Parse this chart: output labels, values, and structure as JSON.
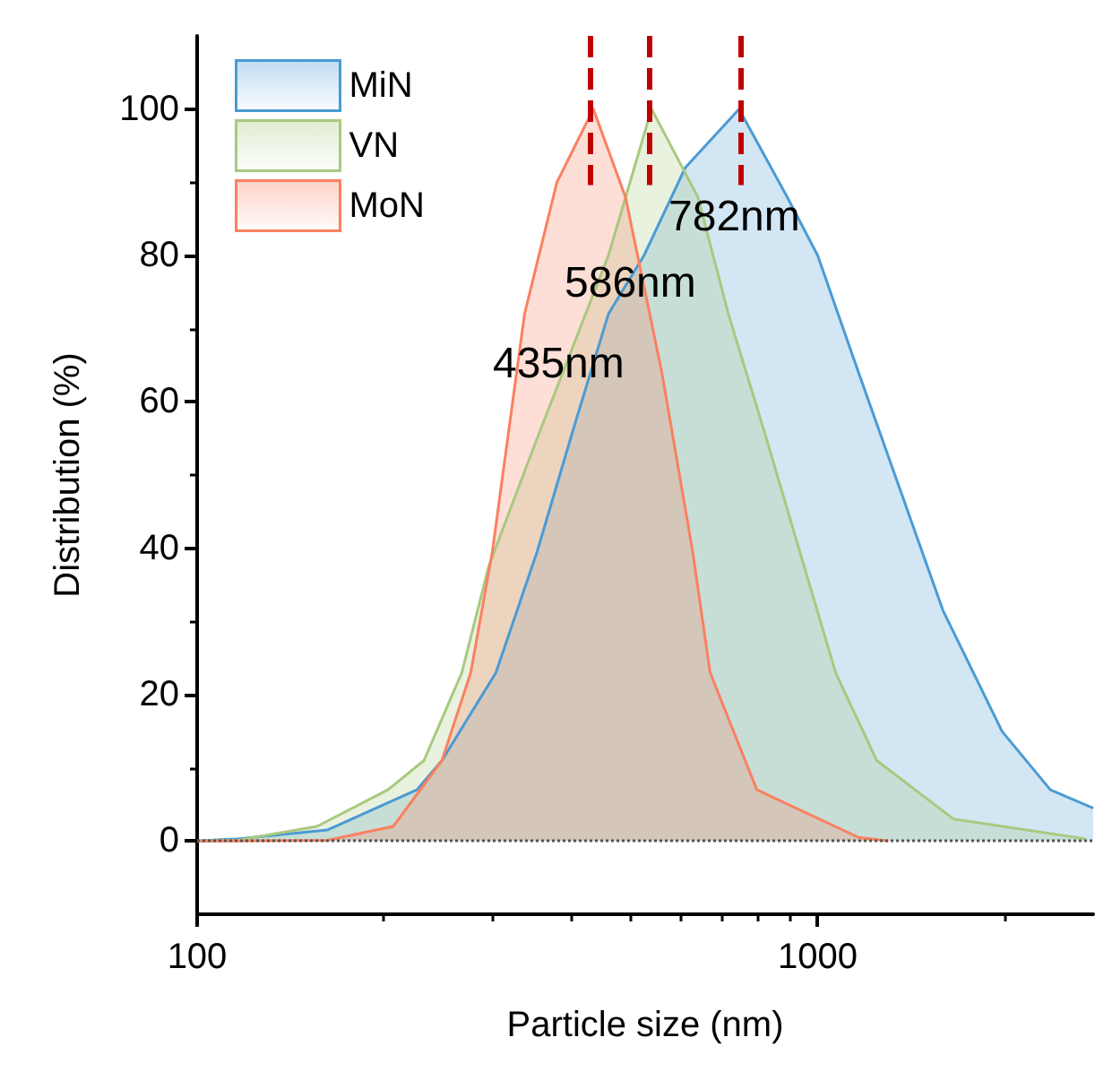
{
  "chart_data": {
    "type": "area",
    "xlabel": "Particle size (nm)",
    "ylabel": "Distribution (%)",
    "log": "x",
    "xlim": [
      100,
      2780
    ],
    "xticks": [
      100,
      1000
    ],
    "ylim": [
      -10,
      110
    ],
    "yticks": [
      0,
      20,
      40,
      60,
      80,
      100
    ],
    "grid": false,
    "legend": "top left",
    "marker": "none",
    "line_style": "solid",
    "series": [
      {
        "name": "MiN",
        "color": "#4a9bd4",
        "x": [
          100,
          116,
          162,
          226,
          248,
          303,
          353,
          403,
          460,
          525,
          612,
          747,
          893,
          1000,
          1164,
          1358,
          1592,
          1982,
          2371,
          2780
        ],
        "values": [
          0,
          0.3,
          1.5,
          7,
          11,
          23,
          39.5,
          56,
          72,
          80,
          92,
          100,
          88,
          80,
          64,
          48,
          31.5,
          15,
          7,
          4.5
        ]
      },
      {
        "name": "VN",
        "color": "#a8c97f",
        "x": [
          100,
          116,
          156,
          203,
          232,
          267,
          295,
          353,
          460,
          540,
          641,
          718,
          820,
          936,
          1069,
          1245,
          1656,
          2705
        ],
        "values": [
          0,
          0.1,
          2,
          7,
          11,
          23,
          37.5,
          55,
          80,
          100,
          88,
          72,
          56,
          39.5,
          23,
          11,
          3,
          0.3
        ]
      },
      {
        "name": "MoN",
        "color": "#fa8060",
        "x": [
          100,
          162,
          207,
          248,
          276,
          299,
          337,
          380,
          435,
          490,
          561,
          629,
          671,
          798,
          1164,
          1300
        ],
        "values": [
          0,
          0.1,
          2,
          11,
          23,
          39.5,
          72,
          90,
          100,
          88,
          64,
          39.5,
          23,
          7,
          0.5,
          0
        ]
      }
    ],
    "ref_lines": [
      {
        "axis": "y",
        "value": 0,
        "color": "#555555",
        "line_style": "dotted"
      },
      {
        "axis": "x",
        "value": 430,
        "color": "#c00000",
        "line_style": "dashed"
      },
      {
        "axis": "x",
        "value": 535,
        "color": "#c00000",
        "line_style": "dashed"
      },
      {
        "axis": "x",
        "value": 750,
        "color": "#c00000",
        "line_style": "dashed"
      }
    ],
    "annotations": [
      "782nm",
      "586nm",
      "435nm"
    ]
  }
}
